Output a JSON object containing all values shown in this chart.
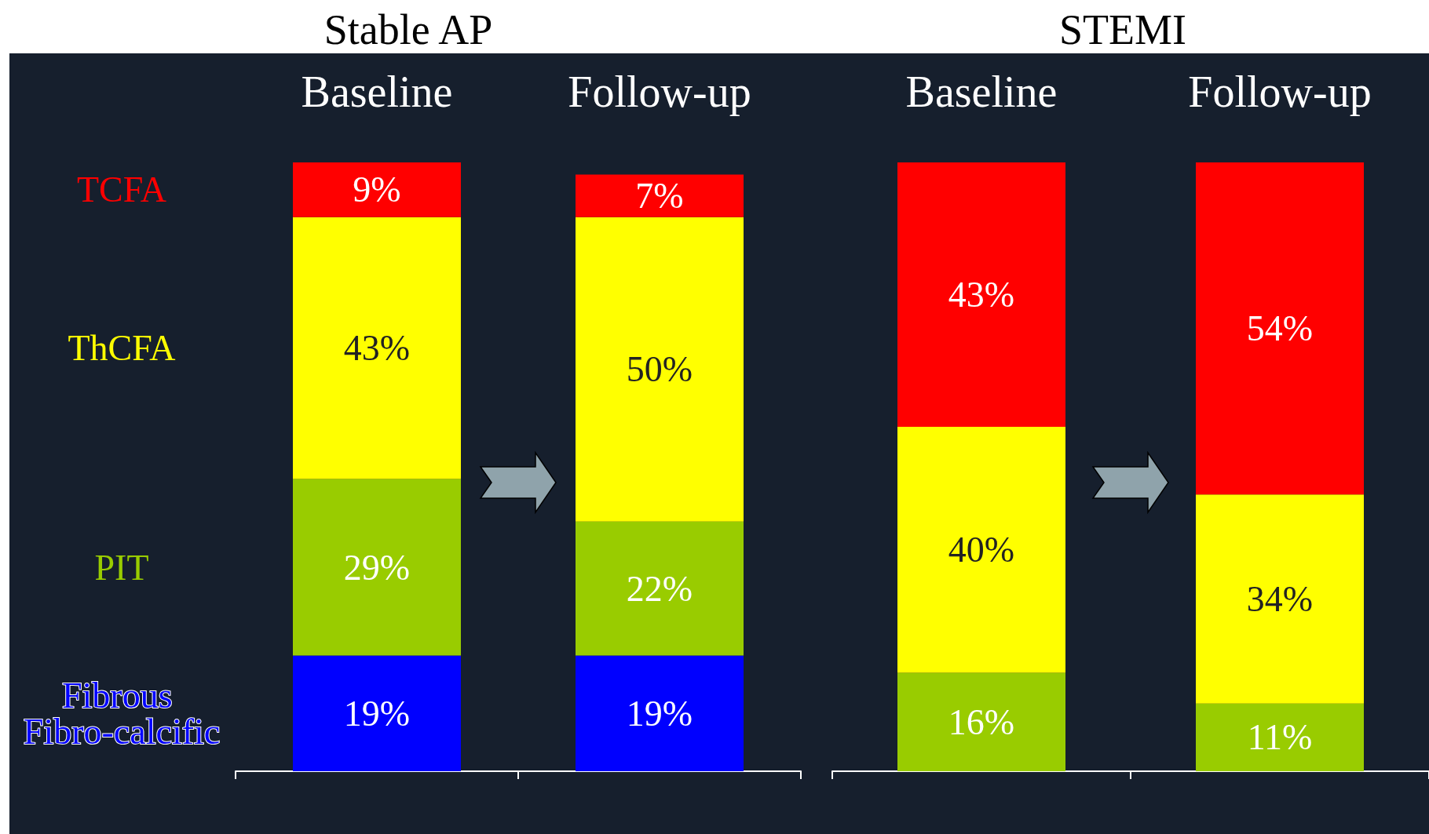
{
  "chart_data": [
    {
      "type": "bar",
      "title": "Stable AP",
      "categories": [
        "Baseline",
        "Follow-up"
      ],
      "stacked": true,
      "tick_labels": "x",
      "series": [
        {
          "name": "Fibrous Fibro-calcific",
          "color": "#0000ff",
          "values": [
            19,
            19
          ],
          "value_labels": [
            "19%",
            "19%"
          ]
        },
        {
          "name": "PIT",
          "color": "#99cc00",
          "values": [
            29,
            22
          ],
          "value_labels": [
            "29%",
            "22%"
          ]
        },
        {
          "name": "ThCFA",
          "color": "#ffff00",
          "values": [
            43,
            50
          ],
          "value_labels": [
            "43%",
            "50%"
          ]
        },
        {
          "name": "TCFA",
          "color": "#ff0000",
          "values": [
            9,
            7
          ],
          "value_labels": [
            "9%",
            "7%"
          ]
        }
      ]
    },
    {
      "type": "bar",
      "title": "STEMI",
      "categories": [
        "Baseline",
        "Follow-up"
      ],
      "stacked": true,
      "tick_labels": "x",
      "series": [
        {
          "color": "#99cc00",
          "values": [
            16,
            11
          ],
          "value_labels": [
            "16%",
            "11%"
          ]
        },
        {
          "color": "#ffff00",
          "values": [
            40,
            34
          ],
          "value_labels": [
            "40%",
            "34%"
          ]
        },
        {
          "color": "#ff0000",
          "values": [
            43,
            54
          ],
          "value_labels": [
            "43%",
            "54%"
          ]
        }
      ]
    }
  ]
}
